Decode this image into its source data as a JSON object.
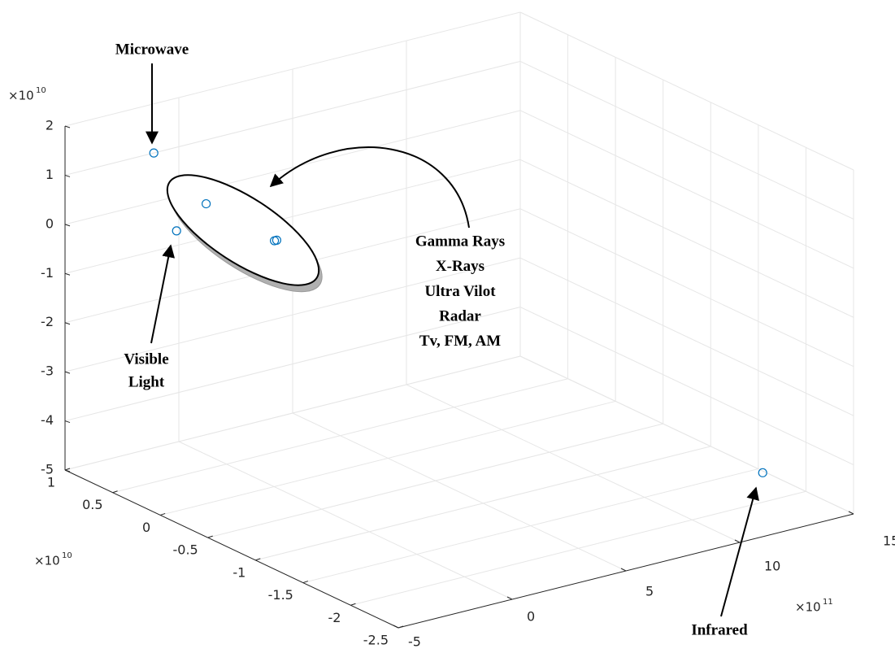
{
  "chart_data": {
    "type": "scatter3d",
    "x": [
      -1.1,
      -0.1,
      1.2,
      4.2,
      4.3,
      13.1
    ],
    "y": [
      1,
      1,
      1,
      1,
      1,
      -2
    ],
    "z": [
      1,
      -0.7,
      -0.3,
      -1.4,
      -1.4,
      -4.4
    ],
    "color": "#0072bd",
    "grid": true,
    "xlim": [
      -5,
      15
    ],
    "xticks": [
      -5,
      0,
      5,
      10,
      15
    ],
    "ylim": [
      -2.5,
      1
    ],
    "yticks": [
      -2.5,
      -2,
      -1.5,
      -1,
      -0.5,
      0,
      0.5,
      1
    ],
    "zlim": [
      -5,
      2
    ],
    "zticks": [
      -5,
      -4,
      -3,
      -2,
      -1,
      0,
      1,
      2
    ],
    "x_multiplier": {
      "base": "×10",
      "power": "11"
    },
    "y_multiplier": {
      "base": "×10",
      "power": "10"
    },
    "z_multiplier": {
      "base": "×10",
      "power": "10"
    },
    "annotations": [
      {
        "lines": [
          "Microwave"
        ]
      },
      {
        "lines": [
          "Visible",
          "Light"
        ]
      },
      {
        "lines": [
          "Gamma Rays",
          "X-Rays",
          "Ultra Vilot",
          "Radar",
          "Tv, FM, AM"
        ]
      },
      {
        "lines": [
          "Infrared"
        ]
      }
    ]
  }
}
